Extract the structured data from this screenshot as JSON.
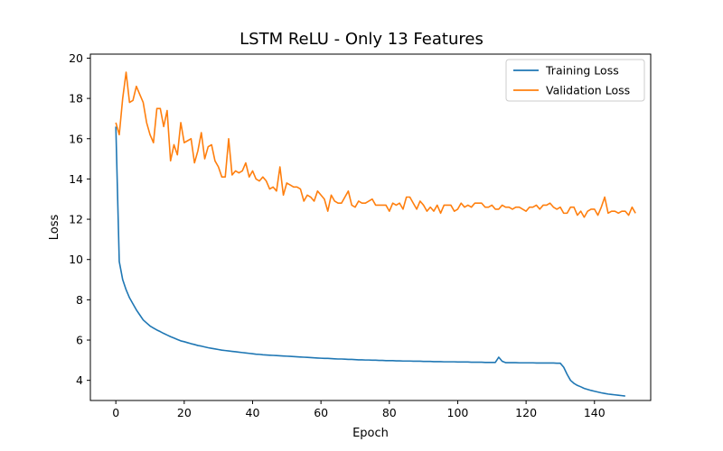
{
  "chart_data": {
    "type": "line",
    "title": "LSTM ReLU - Only 13 Features",
    "xlabel": "Epoch",
    "ylabel": "Loss",
    "xlim": [
      -7.45,
      156.45
    ],
    "ylim": [
      3.0,
      20.2
    ],
    "xticks": [
      0,
      20,
      40,
      60,
      80,
      100,
      120,
      140
    ],
    "yticks": [
      4,
      6,
      8,
      10,
      12,
      14,
      16,
      18,
      20
    ],
    "grid": false,
    "legend_position": "top-right",
    "series": [
      {
        "name": "Training Loss",
        "color": "#1f77b4",
        "values": [
          16.6,
          9.9,
          9.0,
          8.5,
          8.1,
          7.8,
          7.5,
          7.25,
          7.0,
          6.85,
          6.7,
          6.6,
          6.5,
          6.42,
          6.33,
          6.25,
          6.17,
          6.1,
          6.03,
          5.96,
          5.92,
          5.87,
          5.82,
          5.78,
          5.73,
          5.7,
          5.66,
          5.62,
          5.59,
          5.56,
          5.53,
          5.5,
          5.48,
          5.46,
          5.44,
          5.42,
          5.4,
          5.38,
          5.36,
          5.34,
          5.32,
          5.3,
          5.29,
          5.27,
          5.26,
          5.25,
          5.24,
          5.23,
          5.22,
          5.21,
          5.2,
          5.19,
          5.18,
          5.17,
          5.16,
          5.15,
          5.14,
          5.13,
          5.12,
          5.11,
          5.1,
          5.09,
          5.09,
          5.08,
          5.07,
          5.06,
          5.06,
          5.05,
          5.04,
          5.04,
          5.03,
          5.02,
          5.02,
          5.01,
          5.01,
          5.0,
          5.0,
          4.99,
          4.99,
          4.98,
          4.98,
          4.98,
          4.97,
          4.97,
          4.96,
          4.96,
          4.96,
          4.95,
          4.95,
          4.95,
          4.94,
          4.94,
          4.94,
          4.93,
          4.93,
          4.93,
          4.92,
          4.92,
          4.92,
          4.92,
          4.91,
          4.91,
          4.91,
          4.91,
          4.9,
          4.9,
          4.9,
          4.9,
          4.89,
          4.89,
          4.89,
          4.89,
          5.15,
          4.95,
          4.88,
          4.88,
          4.88,
          4.88,
          4.87,
          4.87,
          4.87,
          4.87,
          4.87,
          4.86,
          4.86,
          4.86,
          4.86,
          4.86,
          4.86,
          4.85,
          4.85,
          4.65,
          4.3,
          4.0,
          3.85,
          3.75,
          3.68,
          3.6,
          3.55,
          3.5,
          3.46,
          3.42,
          3.38,
          3.35,
          3.32,
          3.3,
          3.28,
          3.26,
          3.24,
          3.22
        ]
      },
      {
        "name": "Validation Loss",
        "color": "#ff7f0e",
        "values": [
          16.8,
          16.2,
          18.0,
          19.3,
          17.8,
          17.9,
          18.6,
          18.2,
          17.8,
          16.8,
          16.2,
          15.8,
          17.5,
          17.5,
          16.6,
          17.4,
          14.9,
          15.7,
          15.2,
          16.8,
          15.8,
          15.9,
          16.0,
          14.8,
          15.4,
          16.3,
          15.0,
          15.6,
          15.7,
          14.9,
          14.6,
          14.1,
          14.1,
          16.0,
          14.2,
          14.4,
          14.3,
          14.4,
          14.8,
          14.1,
          14.4,
          14.0,
          13.9,
          14.1,
          13.9,
          13.5,
          13.6,
          13.4,
          14.6,
          13.2,
          13.8,
          13.7,
          13.6,
          13.6,
          13.5,
          12.9,
          13.2,
          13.1,
          12.9,
          13.4,
          13.2,
          13.0,
          12.4,
          13.2,
          12.9,
          12.8,
          12.8,
          13.1,
          13.4,
          12.7,
          12.6,
          12.9,
          12.8,
          12.8,
          12.9,
          13.0,
          12.7,
          12.7,
          12.7,
          12.7,
          12.4,
          12.8,
          12.7,
          12.8,
          12.5,
          13.1,
          13.1,
          12.8,
          12.5,
          12.9,
          12.7,
          12.4,
          12.6,
          12.4,
          12.7,
          12.3,
          12.7,
          12.7,
          12.7,
          12.4,
          12.5,
          12.8,
          12.6,
          12.7,
          12.6,
          12.8,
          12.8,
          12.8,
          12.6,
          12.6,
          12.7,
          12.5,
          12.5,
          12.7,
          12.6,
          12.6,
          12.5,
          12.6,
          12.6,
          12.5,
          12.4,
          12.6,
          12.6,
          12.7,
          12.5,
          12.7,
          12.7,
          12.8,
          12.6,
          12.5,
          12.6,
          12.3,
          12.3,
          12.6,
          12.6,
          12.2,
          12.4,
          12.1,
          12.4,
          12.5,
          12.5,
          12.2,
          12.6,
          13.1,
          12.3,
          12.4,
          12.4,
          12.3,
          12.4,
          12.4,
          12.2,
          12.6,
          12.3
        ]
      }
    ]
  }
}
